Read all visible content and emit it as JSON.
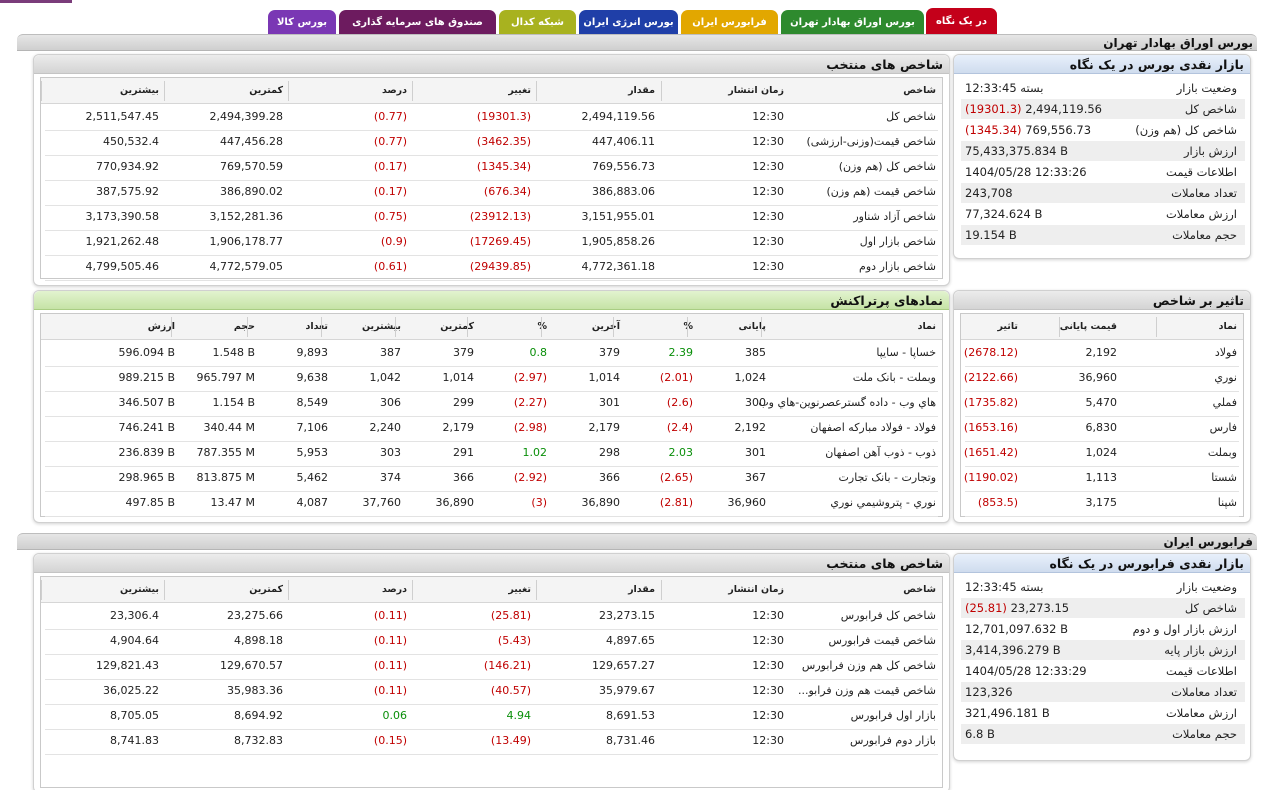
{
  "tabs": [
    {
      "label": "در یک نگاه",
      "color": "#c4001a"
    },
    {
      "label": "بورس اوراق بهادار تهران",
      "color": "#2e8a2e"
    },
    {
      "label": "فرابورس ایران",
      "color": "#e2a700"
    },
    {
      "label": "بورس انرژی ایران",
      "color": "#1f3fa8"
    },
    {
      "label": "شبکه کدال",
      "color": "#a8b21f"
    },
    {
      "label": "صندوق های سرمایه گذاری",
      "color": "#6d1b5f"
    },
    {
      "label": "بورس کالا",
      "color": "#7a37b4"
    }
  ],
  "tse": {
    "section_title": "بورس اوراق بهادار تهران",
    "indices": {
      "title": "شاخص های منتخب",
      "headers": [
        "شاخص",
        "زمان انتشار",
        "مقدار",
        "تغییر",
        "درصد",
        "کمترین",
        "بیشترین"
      ],
      "rows": [
        [
          "شاخص کل",
          "12:30",
          "2,494,119.56",
          "(19301.3)",
          "(0.77)",
          "2,494,399.28",
          "2,511,547.45"
        ],
        [
          "شاخص قیمت(وزنی-ارزشی)",
          "12:30",
          "447,406.11",
          "(3462.35)",
          "(0.77)",
          "447,456.28",
          "450,532.4"
        ],
        [
          "شاخص کل (هم وزن)",
          "12:30",
          "769,556.73",
          "(1345.34)",
          "(0.17)",
          "769,570.59",
          "770,934.92"
        ],
        [
          "شاخص قیمت (هم وزن)",
          "12:30",
          "386,883.06",
          "(676.34)",
          "(0.17)",
          "386,890.02",
          "387,575.92"
        ],
        [
          "شاخص آزاد شناور",
          "12:30",
          "3,151,955.01",
          "(23912.13)",
          "(0.75)",
          "3,152,281.36",
          "3,173,390.58"
        ],
        [
          "شاخص بازار اول",
          "12:30",
          "1,905,858.26",
          "(17269.45)",
          "(0.9)",
          "1,906,178.77",
          "1,921,262.48"
        ],
        [
          "شاخص بازار دوم",
          "12:30",
          "4,772,361.18",
          "(29439.85)",
          "(0.61)",
          "4,772,579.05",
          "4,799,505.46"
        ]
      ]
    },
    "glance": {
      "title": "بازار نقدی بورس در یک نگاه",
      "rows": [
        {
          "label": "وضعیت بازار",
          "value": "بسته 12:33:45",
          "change": ""
        },
        {
          "label": "شاخص کل",
          "value": "2,494,119.56",
          "change": "(19301.3)"
        },
        {
          "label": "شاخص کل (هم وزن)",
          "value": "769,556.73",
          "change": "(1345.34)"
        },
        {
          "label": "ارزش بازار",
          "value": "75,433,375.834 B",
          "change": ""
        },
        {
          "label": "اطلاعات قیمت",
          "value": "1404/05/28 12:33:26",
          "change": ""
        },
        {
          "label": "تعداد معاملات",
          "value": "243,708",
          "change": ""
        },
        {
          "label": "ارزش معاملات",
          "value": "77,324.624 B",
          "change": ""
        },
        {
          "label": "حجم معاملات",
          "value": "19.154 B",
          "change": ""
        }
      ]
    },
    "active": {
      "title": "نمادهای پرتراکنش",
      "headers": [
        "نماد",
        "پایانی",
        "%",
        "آخرین",
        "%",
        "کمترین",
        "بیشترین",
        "تعداد",
        "حجم",
        "ارزش"
      ],
      "rows": [
        [
          "خساپا - سايپا",
          "385",
          "2.39",
          "379",
          "0.8",
          "379",
          "387",
          "9,893",
          "1.548 B",
          "596.094 B"
        ],
        [
          "وبملت - بانک ملت",
          "1,024",
          "(2.01)",
          "1,014",
          "(2.97)",
          "1,014",
          "1,042",
          "9,638",
          "965.797 M",
          "989.215 B"
        ],
        [
          "هاي وب - داده گسترعصرنوين-هاي وب",
          "300",
          "(2.6)",
          "301",
          "(2.27)",
          "299",
          "306",
          "8,549",
          "1.154 B",
          "346.507 B"
        ],
        [
          "فولاد - فولاد مباركه اصفهان",
          "2,192",
          "(2.4)",
          "2,179",
          "(2.98)",
          "2,179",
          "2,240",
          "7,106",
          "340.44 M",
          "746.241 B"
        ],
        [
          "ذوب - ذوب آهن اصفهان",
          "301",
          "2.03",
          "298",
          "1.02",
          "291",
          "303",
          "5,953",
          "787.355 M",
          "236.839 B"
        ],
        [
          "وتجارت - بانک تجارت",
          "367",
          "(2.65)",
          "366",
          "(2.92)",
          "366",
          "374",
          "5,462",
          "813.875 M",
          "298.965 B"
        ],
        [
          "نوري - پتروشيمي نوري",
          "36,960",
          "(2.81)",
          "36,890",
          "(3)",
          "36,890",
          "37,760",
          "4,087",
          "13.47 M",
          "497.85 B"
        ]
      ]
    },
    "impact": {
      "title": "تاثیر بر شاخص",
      "headers": [
        "نماد",
        "قیمت پایانی",
        "تاثیر"
      ],
      "rows": [
        [
          "فولاد",
          "2,192",
          "(2678.12)"
        ],
        [
          "نوري",
          "36,960",
          "(2122.66)"
        ],
        [
          "فملي",
          "5,470",
          "(1735.82)"
        ],
        [
          "فارس",
          "6,830",
          "(1653.16)"
        ],
        [
          "وبملت",
          "1,024",
          "(1651.42)"
        ],
        [
          "شستا",
          "1,113",
          "(1190.02)"
        ],
        [
          "شپنا",
          "3,175",
          "(853.5)"
        ]
      ]
    }
  },
  "ifb": {
    "section_title": "فرابورس ایران",
    "indices": {
      "title": "شاخص های منتخب",
      "headers": [
        "شاخص",
        "زمان انتشار",
        "مقدار",
        "تغییر",
        "درصد",
        "کمترین",
        "بیشترین"
      ],
      "rows": [
        [
          "شاخص کل فرابورس",
          "12:30",
          "23,273.15",
          "(25.81)",
          "(0.11)",
          "23,275.66",
          "23,306.4"
        ],
        [
          "شاخص قیمت فرابورس",
          "12:30",
          "4,897.65",
          "(5.43)",
          "(0.11)",
          "4,898.18",
          "4,904.64"
        ],
        [
          "شاخص کل هم وزن فرابورس",
          "12:30",
          "129,657.27",
          "(146.21)",
          "(0.11)",
          "129,670.57",
          "129,821.43"
        ],
        [
          "شاخص قیمت هم وزن فرابو...",
          "12:30",
          "35,979.67",
          "(40.57)",
          "(0.11)",
          "35,983.36",
          "36,025.22"
        ],
        [
          "بازار اول فرابورس",
          "12:30",
          "8,691.53",
          "4.94",
          "0.06",
          "8,694.92",
          "8,705.05"
        ],
        [
          "بازار دوم فرابورس",
          "12:30",
          "8,731.46",
          "(13.49)",
          "(0.15)",
          "8,732.83",
          "8,741.83"
        ]
      ]
    },
    "glance": {
      "title": "بازار نقدی فرابورس در یک نگاه",
      "rows": [
        {
          "label": "وضعیت بازار",
          "value": "بسته 12:33:45",
          "change": ""
        },
        {
          "label": "شاخص کل",
          "value": "23,273.15",
          "change": "(25.81)"
        },
        {
          "label": "ارزش بازار اول و دوم",
          "value": "12,701,097.632 B",
          "change": ""
        },
        {
          "label": "ارزش بازار پایه",
          "value": "3,414,396.279 B",
          "change": ""
        },
        {
          "label": "اطلاعات قیمت",
          "value": "1404/05/28 12:33:29",
          "change": ""
        },
        {
          "label": "تعداد معاملات",
          "value": "123,326",
          "change": ""
        },
        {
          "label": "ارزش معاملات",
          "value": "321,496.181 B",
          "change": ""
        },
        {
          "label": "حجم معاملات",
          "value": "6.8 B",
          "change": ""
        }
      ]
    }
  }
}
